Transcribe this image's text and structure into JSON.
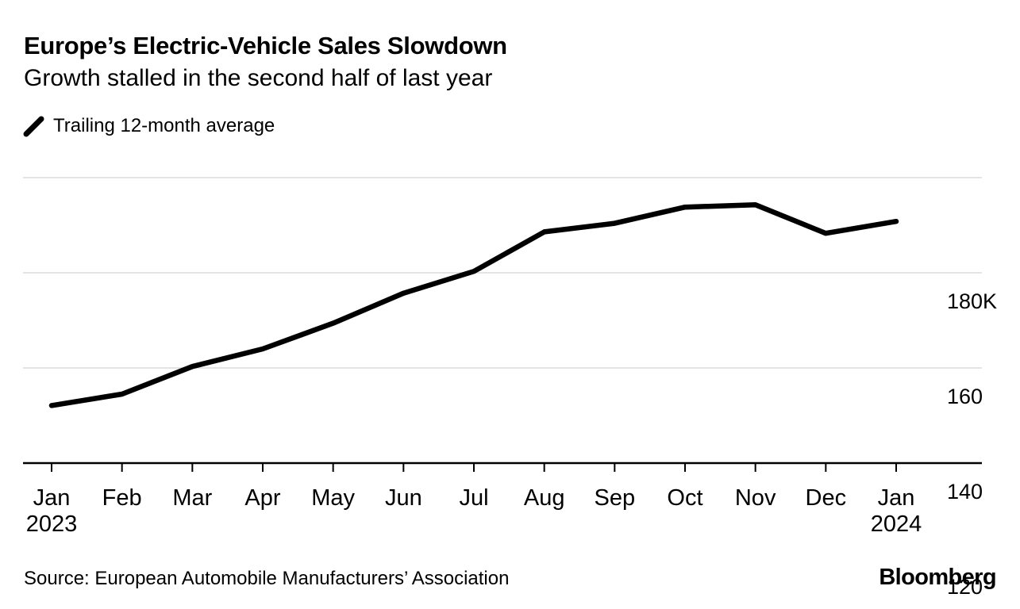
{
  "header": {
    "title": "Europe’s Electric-Vehicle Sales Slowdown",
    "subtitle": "Growth stalled in the second half of last year"
  },
  "legend": {
    "label": "Trailing 12-month average"
  },
  "footer": {
    "source": "Source: European Automobile Manufacturers’ Association",
    "brand": "Bloomberg"
  },
  "colors": {
    "line": "#000000",
    "grid": "#dcdcdc",
    "axis": "#000000",
    "text": "#000000",
    "background": "#ffffff"
  },
  "chart_data": {
    "type": "line",
    "title": "Europe’s Electric-Vehicle Sales Slowdown",
    "subtitle": "Growth stalled in the second half of last year",
    "unit": "thousand vehicles (K)",
    "grid": "horizontal",
    "legend_position": "top-left",
    "categories": [
      {
        "month": "Jan",
        "year": "2023"
      },
      {
        "month": "Feb"
      },
      {
        "month": "Mar"
      },
      {
        "month": "Apr"
      },
      {
        "month": "May"
      },
      {
        "month": "Jun"
      },
      {
        "month": "Jul"
      },
      {
        "month": "Aug"
      },
      {
        "month": "Sep"
      },
      {
        "month": "Oct"
      },
      {
        "month": "Nov"
      },
      {
        "month": "Dec"
      },
      {
        "month": "Jan",
        "year": "2024"
      }
    ],
    "series": [
      {
        "name": "Trailing 12-month average",
        "values": [
          132.1,
          134.5,
          140.3,
          144.0,
          149.4,
          155.7,
          160.3,
          168.6,
          170.4,
          173.8,
          174.3,
          168.3,
          170.8
        ]
      }
    ],
    "ylim": [
      120,
      183
    ],
    "yticks": [
      {
        "value": 120,
        "label": "120"
      },
      {
        "value": 140,
        "label": "140"
      },
      {
        "value": 160,
        "label": "160"
      },
      {
        "value": 180,
        "label": "180K"
      }
    ]
  }
}
